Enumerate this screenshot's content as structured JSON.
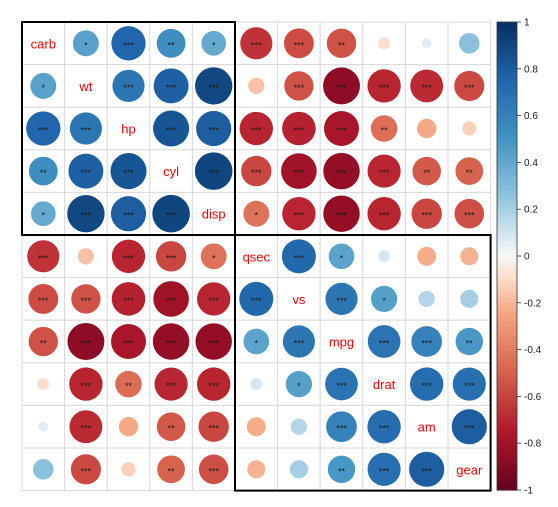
{
  "chart_data": {
    "type": "heatmap",
    "title": "",
    "variables": [
      "carb",
      "wt",
      "hp",
      "cyl",
      "disp",
      "qsec",
      "vs",
      "mpg",
      "drat",
      "am",
      "gear"
    ],
    "matrix": [
      [
        1.0,
        0.43,
        0.75,
        0.53,
        0.39,
        -0.66,
        -0.57,
        -0.55,
        -0.09,
        0.06,
        0.27
      ],
      [
        0.43,
        1.0,
        0.66,
        0.78,
        0.89,
        -0.17,
        -0.55,
        -0.87,
        -0.71,
        -0.69,
        -0.58
      ],
      [
        0.75,
        0.66,
        1.0,
        0.83,
        0.79,
        -0.71,
        -0.72,
        -0.78,
        -0.45,
        -0.24,
        -0.13
      ],
      [
        0.53,
        0.78,
        0.83,
        1.0,
        0.9,
        -0.59,
        -0.81,
        -0.85,
        -0.7,
        -0.52,
        -0.49
      ],
      [
        0.39,
        0.89,
        0.79,
        0.9,
        1.0,
        -0.43,
        -0.71,
        -0.85,
        -0.71,
        -0.59,
        -0.56
      ],
      [
        -0.66,
        -0.17,
        -0.71,
        -0.59,
        -0.43,
        1.0,
        0.74,
        0.42,
        0.09,
        -0.23,
        -0.21
      ],
      [
        -0.57,
        -0.55,
        -0.72,
        -0.81,
        -0.71,
        0.74,
        1.0,
        0.66,
        0.44,
        0.17,
        0.21
      ],
      [
        -0.55,
        -0.87,
        -0.78,
        -0.85,
        -0.85,
        0.42,
        0.66,
        1.0,
        0.68,
        0.6,
        0.48
      ],
      [
        -0.09,
        -0.71,
        -0.45,
        -0.7,
        -0.71,
        0.09,
        0.44,
        0.68,
        1.0,
        0.71,
        0.7
      ],
      [
        0.06,
        -0.69,
        -0.24,
        -0.52,
        -0.59,
        -0.23,
        0.17,
        0.6,
        0.71,
        1.0,
        0.79
      ],
      [
        0.27,
        -0.58,
        -0.13,
        -0.49,
        -0.56,
        -0.21,
        0.21,
        0.48,
        0.7,
        0.79,
        1.0
      ]
    ],
    "significance": [
      [
        "",
        "*",
        "***",
        "**",
        "*",
        "***",
        "***",
        "**",
        "",
        "",
        ""
      ],
      [
        "*",
        "",
        "***",
        "***",
        "***",
        "",
        "***",
        "***",
        "***",
        "***",
        "***"
      ],
      [
        "***",
        "***",
        "",
        "***",
        "***",
        "***",
        "***",
        "***",
        "**",
        "",
        ""
      ],
      [
        "**",
        "***",
        "***",
        "",
        "***",
        "***",
        "***",
        "***",
        "***",
        "**",
        "**"
      ],
      [
        "*",
        "***",
        "***",
        "***",
        "",
        "*",
        "***",
        "***",
        "***",
        "***",
        "***"
      ],
      [
        "***",
        "",
        "***",
        "***",
        "*",
        "",
        "***",
        "*",
        "",
        "",
        ""
      ],
      [
        "***",
        "***",
        "***",
        "***",
        "***",
        "***",
        "",
        "***",
        "*",
        "",
        ""
      ],
      [
        "**",
        "***",
        "***",
        "***",
        "***",
        "*",
        "***",
        "",
        "***",
        "***",
        "**"
      ],
      [
        "",
        "***",
        "**",
        "***",
        "***",
        "",
        "*",
        "***",
        "",
        "***",
        "***"
      ],
      [
        "",
        "***",
        "",
        "**",
        "***",
        "",
        "",
        "***",
        "***",
        "",
        "***"
      ],
      [
        "",
        "***",
        "",
        "**",
        "***",
        "",
        "",
        "**",
        "***",
        "***",
        ""
      ]
    ],
    "clusters": [
      [
        0,
        4
      ],
      [
        5,
        10
      ]
    ],
    "colorbar": {
      "ticks": [
        "1",
        "0.8",
        "0.6",
        "0.4",
        "0.2",
        "0",
        "-0.2",
        "-0.4",
        "-0.6",
        "-0.8",
        "-1"
      ],
      "range": [
        -1,
        1
      ]
    },
    "colors": {
      "positive_max": "#053061",
      "neutral": "#f7f7f7",
      "negative_max": "#67001f",
      "label": "#ff0000",
      "grid": "#d9d9d9",
      "cluster_border": "#000000"
    }
  }
}
